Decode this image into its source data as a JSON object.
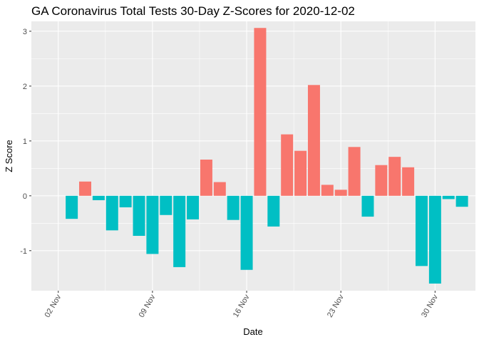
{
  "chart_data": {
    "type": "bar",
    "title": "GA Coronavirus Total Tests 30-Day Z-Scores for 2020-12-02",
    "xlabel": "Date",
    "ylabel": "Z Score",
    "year": 2020,
    "x_ticks": [
      {
        "label": "02 Nov",
        "date": "2020-11-02"
      },
      {
        "label": "09 Nov",
        "date": "2020-11-09"
      },
      {
        "label": "16 Nov",
        "date": "2020-11-16"
      },
      {
        "label": "23 Nov",
        "date": "2020-11-23"
      },
      {
        "label": "30 Nov",
        "date": "2020-11-30"
      }
    ],
    "y_ticks": [
      -1,
      0,
      1,
      2,
      3
    ],
    "xlim": [
      "2020-10-31",
      "2020-12-03"
    ],
    "ylim": [
      -1.73,
      3.18
    ],
    "grid": true,
    "legend": "none",
    "colors": {
      "positive": "#F8766D",
      "negative": "#00BFC4"
    },
    "dates": [
      "2020-11-03",
      "2020-11-04",
      "2020-11-05",
      "2020-11-06",
      "2020-11-07",
      "2020-11-08",
      "2020-11-09",
      "2020-11-10",
      "2020-11-11",
      "2020-11-12",
      "2020-11-13",
      "2020-11-14",
      "2020-11-15",
      "2020-11-16",
      "2020-11-17",
      "2020-11-18",
      "2020-11-19",
      "2020-11-20",
      "2020-11-21",
      "2020-11-22",
      "2020-11-23",
      "2020-11-24",
      "2020-11-25",
      "2020-11-26",
      "2020-11-27",
      "2020-11-28",
      "2020-11-29",
      "2020-11-30",
      "2020-12-01",
      "2020-12-02"
    ],
    "values": [
      -0.42,
      0.26,
      -0.08,
      -0.63,
      -0.21,
      -0.73,
      -1.06,
      -0.35,
      -1.3,
      -0.43,
      0.66,
      0.25,
      -0.44,
      -1.35,
      3.06,
      -0.56,
      1.12,
      0.82,
      2.02,
      0.2,
      0.11,
      0.89,
      -0.38,
      0.56,
      0.71,
      0.52,
      -1.28,
      -1.6,
      -0.06,
      -0.2
    ]
  }
}
